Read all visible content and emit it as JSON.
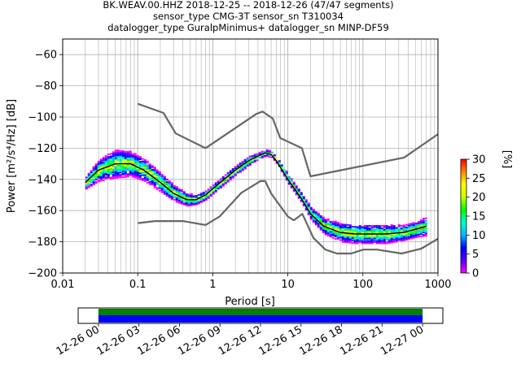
{
  "chart_data": {
    "type": "heatmap",
    "title_lines": [
      "BK.WEAV.00.HHZ   2018-12-25 -- 2018-12-26  (47/47 segments)",
      "sensor_type CMG-3T sensor_sn T310034",
      "datalogger_type GuralpMinimus+ datalogger_sn MINP-DF59"
    ],
    "xlabel": "Period [s]",
    "ylabel": "Power [m²/s⁴/Hz] [dB]",
    "x_scale": "log",
    "xlim": [
      0.01,
      1000
    ],
    "ylim": [
      -200,
      -50
    ],
    "x_ticks": [
      0.01,
      0.1,
      1,
      10,
      100,
      1000
    ],
    "x_tick_labels": [
      "0.01",
      "0.1",
      "1",
      "10",
      "100",
      "1000"
    ],
    "y_ticks": [
      -200,
      -180,
      -160,
      -140,
      -120,
      -100,
      -80,
      -60
    ],
    "y_tick_labels": [
      "−200",
      "−180",
      "−160",
      "−140",
      "−120",
      "−100",
      "−80",
      "−60"
    ],
    "grid": true,
    "colorbar": {
      "label": "[%]",
      "range": [
        0,
        30
      ],
      "ticks": [
        0,
        5,
        10,
        15,
        20,
        25,
        30
      ],
      "tick_labels": [
        "0",
        "5",
        "10",
        "15",
        "20",
        "25",
        "30"
      ],
      "colors": [
        "#ff00ff",
        "#5500ff",
        "#0000ff",
        "#00bbff",
        "#00ffcc",
        "#00ff00",
        "#ccff00",
        "#ffff00",
        "#ff8800",
        "#ff0000"
      ]
    },
    "series": [
      {
        "kind": "noise-model-high",
        "color": "#666666",
        "x": [
          0.1,
          0.22,
          0.32,
          0.8,
          3.8,
          4.6,
          6.3,
          7.9,
          15.4,
          20,
          354.8,
          1000
        ],
        "y": [
          -91.5,
          -97.4,
          -110.5,
          -120,
          -98,
          -96.5,
          -101,
          -113.5,
          -120,
          -138,
          -126,
          -111
        ]
      },
      {
        "kind": "noise-model-low",
        "color": "#666666",
        "x": [
          0.1,
          0.17,
          0.4,
          0.8,
          1.24,
          2.4,
          4.3,
          5,
          6,
          10,
          12,
          15.6,
          21.9,
          31.6,
          45,
          70,
          101,
          154,
          328,
          600,
          1000
        ],
        "y": [
          -168,
          -166.7,
          -166.7,
          -169.2,
          -163.7,
          -148.6,
          -141.1,
          -141.1,
          -149,
          -163.8,
          -166.2,
          -162.1,
          -177.5,
          -185,
          -187.5,
          -187.5,
          -185,
          -185,
          -187.5,
          -184.4,
          -178
        ]
      },
      {
        "kind": "mean",
        "color": "#000000",
        "x": [
          0.02,
          0.03,
          0.05,
          0.08,
          0.12,
          0.2,
          0.3,
          0.45,
          0.6,
          0.8,
          1.0,
          1.5,
          2,
          3,
          4,
          5,
          6,
          7,
          10,
          15,
          20,
          30,
          50,
          80,
          120,
          200,
          350,
          500,
          700
        ],
        "y": [
          -142,
          -134,
          -130,
          -130,
          -134,
          -142,
          -149,
          -153,
          -153,
          -150,
          -146,
          -139,
          -134,
          -128,
          -125,
          -123,
          -124,
          -128,
          -140,
          -152,
          -162,
          -170,
          -174,
          -175,
          -175,
          -175,
          -174,
          -172,
          -170
        ]
      }
    ],
    "density_band": {
      "x": [
        0.02,
        0.03,
        0.05,
        0.08,
        0.12,
        0.2,
        0.3,
        0.45,
        0.6,
        0.8,
        1.0,
        1.5,
        2,
        3,
        4,
        5,
        6,
        7,
        10,
        15,
        20,
        30,
        50,
        80,
        120,
        200,
        350,
        500,
        700
      ],
      "y_center": [
        -142,
        -134,
        -130,
        -130,
        -134,
        -142,
        -149,
        -153,
        -153,
        -150,
        -146,
        -139,
        -134,
        -128,
        -125,
        -123,
        -124,
        -128,
        -140,
        -152,
        -162,
        -170,
        -174,
        -175,
        -175,
        -175,
        -174,
        -172,
        -170
      ],
      "y_halfwidth": [
        4,
        7,
        9,
        8,
        7,
        6,
        5,
        4,
        3,
        3,
        3,
        3,
        3,
        3,
        2,
        2,
        2,
        2,
        3,
        3,
        4,
        5,
        6,
        6,
        6,
        6,
        5,
        5,
        6
      ]
    },
    "time_axis": {
      "tick_labels": [
        "12-26 00",
        "12-26 03",
        "12-26 06",
        "12-26 09",
        "12-26 12",
        "12-26 15",
        "12-26 18",
        "12-26 21",
        "12-27 00"
      ],
      "range_hours": [
        -1.5,
        25.5
      ],
      "bar_start_hour": 0,
      "bar_end_hour": 24,
      "top_bar_color": "#008000",
      "bottom_bar_color": "#0000ff"
    }
  }
}
